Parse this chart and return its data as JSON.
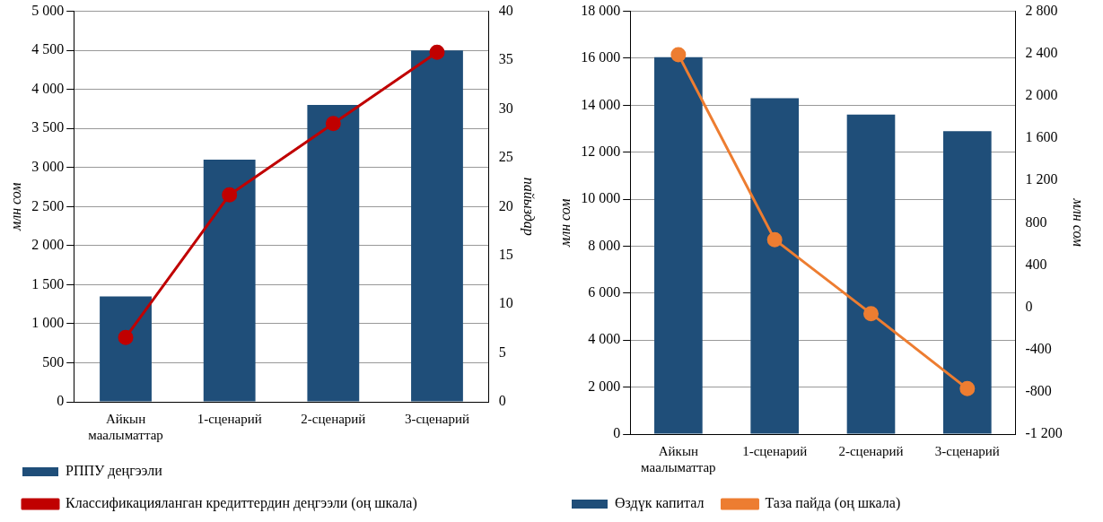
{
  "chart_data": [
    {
      "type": "bar",
      "categories": [
        "Айкын маалыматтар",
        "1-сценарий",
        "2-сценарий",
        "3-сценарий"
      ],
      "series": [
        {
          "name": "РППУ деңгээли",
          "color": "#1f4e79",
          "values": [
            1350,
            3100,
            3800,
            4500
          ]
        },
        {
          "name": "Классификацияланган кредиттердин деңгээли (оң шкала)",
          "type": "line",
          "axis": "y2",
          "color": "#c00000",
          "values": [
            6.6,
            21.2,
            28.5,
            35.8
          ]
        }
      ],
      "ylabel": "млн сом",
      "y2label": "пайыздар",
      "ylim": [
        0,
        5000
      ],
      "yticks": [
        {
          "value": 0,
          "label": "0"
        },
        500,
        {
          "value": 1000,
          "label": "1 000"
        },
        {
          "value": 1500,
          "label": "1 500"
        },
        {
          "value": 2000,
          "label": "2 000"
        },
        {
          "value": 2500,
          "label": "2 500"
        },
        {
          "value": 3000,
          "label": "3 000"
        },
        {
          "value": 3500,
          "label": "3 500"
        },
        {
          "value": 4000,
          "label": "4 000"
        },
        {
          "value": 4500,
          "label": "4 500"
        },
        {
          "value": 5000,
          "label": "5 000"
        }
      ],
      "y2lim": [
        0,
        40
      ],
      "y2ticks": [
        {
          "value": 0,
          "label": "0"
        },
        5,
        10,
        15,
        20,
        25,
        30,
        35,
        40
      ],
      "grid": "y",
      "legend": "bottom",
      "marker": "circle"
    },
    {
      "type": "bar",
      "categories": [
        "Айкын маалыматтар",
        "1-сценарий",
        "2-сценарий",
        "3-сценарий"
      ],
      "series": [
        {
          "name": "Өздүк капитал",
          "color": "#1f4e79",
          "values": [
            16050,
            14300,
            13600,
            12900
          ]
        },
        {
          "name": "Таза пайда (оң шкала)",
          "type": "line",
          "axis": "y2",
          "color": "#ed7d31",
          "values": [
            2390,
            640,
            -60,
            -770
          ]
        }
      ],
      "ylabel": "млн сом",
      "y2label": "млн сом",
      "ylim": [
        0,
        18000
      ],
      "yticks": [
        {
          "value": 0,
          "label": "0"
        },
        {
          "value": 2000,
          "label": "2 000"
        },
        {
          "value": 4000,
          "label": "4 000"
        },
        {
          "value": 6000,
          "label": "6 000"
        },
        {
          "value": 8000,
          "label": "8 000"
        },
        {
          "value": 10000,
          "label": "10 000"
        },
        {
          "value": 12000,
          "label": "12 000"
        },
        {
          "value": 14000,
          "label": "14 000"
        },
        {
          "value": 16000,
          "label": "16 000"
        },
        {
          "value": 18000,
          "label": "18 000"
        }
      ],
      "y2lim": [
        -1200,
        2800
      ],
      "y2ticks": [
        {
          "value": -1200,
          "label": "-1 200"
        },
        -800,
        -400,
        {
          "value": 0,
          "label": "0"
        },
        400,
        800,
        {
          "value": 1200,
          "label": "1 200"
        },
        {
          "value": 1600,
          "label": "1 600"
        },
        {
          "value": 2000,
          "label": "2 000"
        },
        {
          "value": 2400,
          "label": "2 400"
        },
        {
          "value": 2800,
          "label": "2 800"
        }
      ],
      "grid": "y",
      "legend": "bottom",
      "marker": "circle"
    }
  ]
}
